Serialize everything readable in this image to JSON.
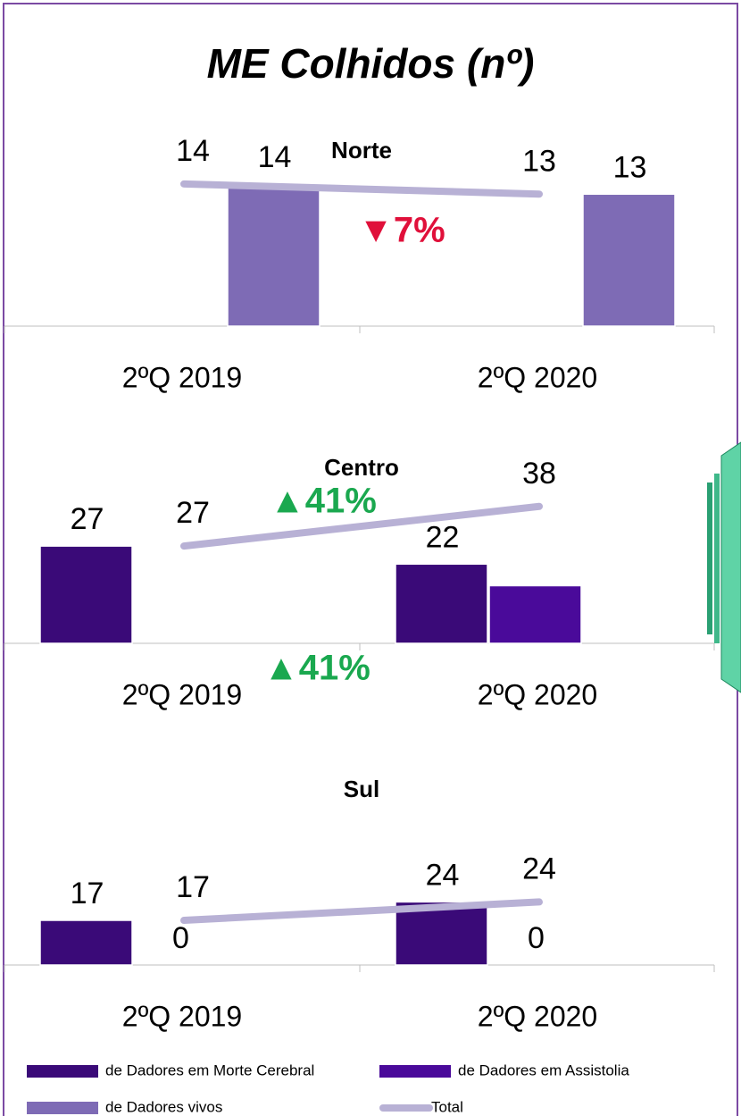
{
  "title": "ME Colhidos (nº)",
  "chart_data": [
    {
      "type": "bar",
      "subtitle": "Norte",
      "categories": [
        "2ºQ 2019",
        "2ºQ 2020"
      ],
      "ylim": [
        0,
        22
      ],
      "annotation": "▼7%",
      "annotation_color": "#e0103a",
      "series": [
        {
          "name": "de Dadores em Morte Cerebral",
          "color": "#3a0a78",
          "values": [
            null,
            null
          ]
        },
        {
          "name": "de Dadores em Assistolia",
          "color": "#4a0a9a",
          "values": [
            null,
            null
          ]
        },
        {
          "name": "de Dadores vivos",
          "color": "#7e6bb5",
          "values": [
            14,
            13
          ]
        },
        {
          "name": "Total",
          "type": "line",
          "color": "#b8b1d5",
          "values": [
            14,
            13
          ]
        }
      ]
    },
    {
      "type": "bar",
      "subtitle": "Centro",
      "categories": [
        "2ºQ 2019",
        "2ºQ 2020"
      ],
      "ylim": [
        0,
        62
      ],
      "annotation": "▲41%",
      "annotation_color": "#1aa84f",
      "series": [
        {
          "name": "de Dadores em Morte Cerebral",
          "color": "#3a0a78",
          "values": [
            27,
            22
          ]
        },
        {
          "name": "de Dadores em Assistolia",
          "color": "#4a0a9a",
          "values": [
            null,
            16
          ],
          "data_labels": false
        },
        {
          "name": "de Dadores vivos",
          "color": "#7e6bb5",
          "values": [
            null,
            null
          ]
        },
        {
          "name": "Total",
          "type": "line",
          "color": "#b8b1d5",
          "values": [
            27,
            38
          ]
        }
      ]
    },
    {
      "type": "bar",
      "subtitle": "Sul",
      "categories": [
        "2ºQ 2019",
        "2ºQ 2020"
      ],
      "ylim": [
        0,
        85
      ],
      "annotation": "▲41%",
      "annotation_color": "#1aa84f",
      "series": [
        {
          "name": "de Dadores em Morte Cerebral",
          "color": "#3a0a78",
          "values": [
            17,
            24
          ]
        },
        {
          "name": "de Dadores em Assistolia",
          "color": "#4a0a9a",
          "values": [
            0,
            0
          ]
        },
        {
          "name": "de Dadores vivos",
          "color": "#7e6bb5",
          "values": [
            null,
            null
          ]
        },
        {
          "name": "Total",
          "type": "line",
          "color": "#b8b1d5",
          "values": [
            17,
            24
          ]
        }
      ]
    }
  ]
}
